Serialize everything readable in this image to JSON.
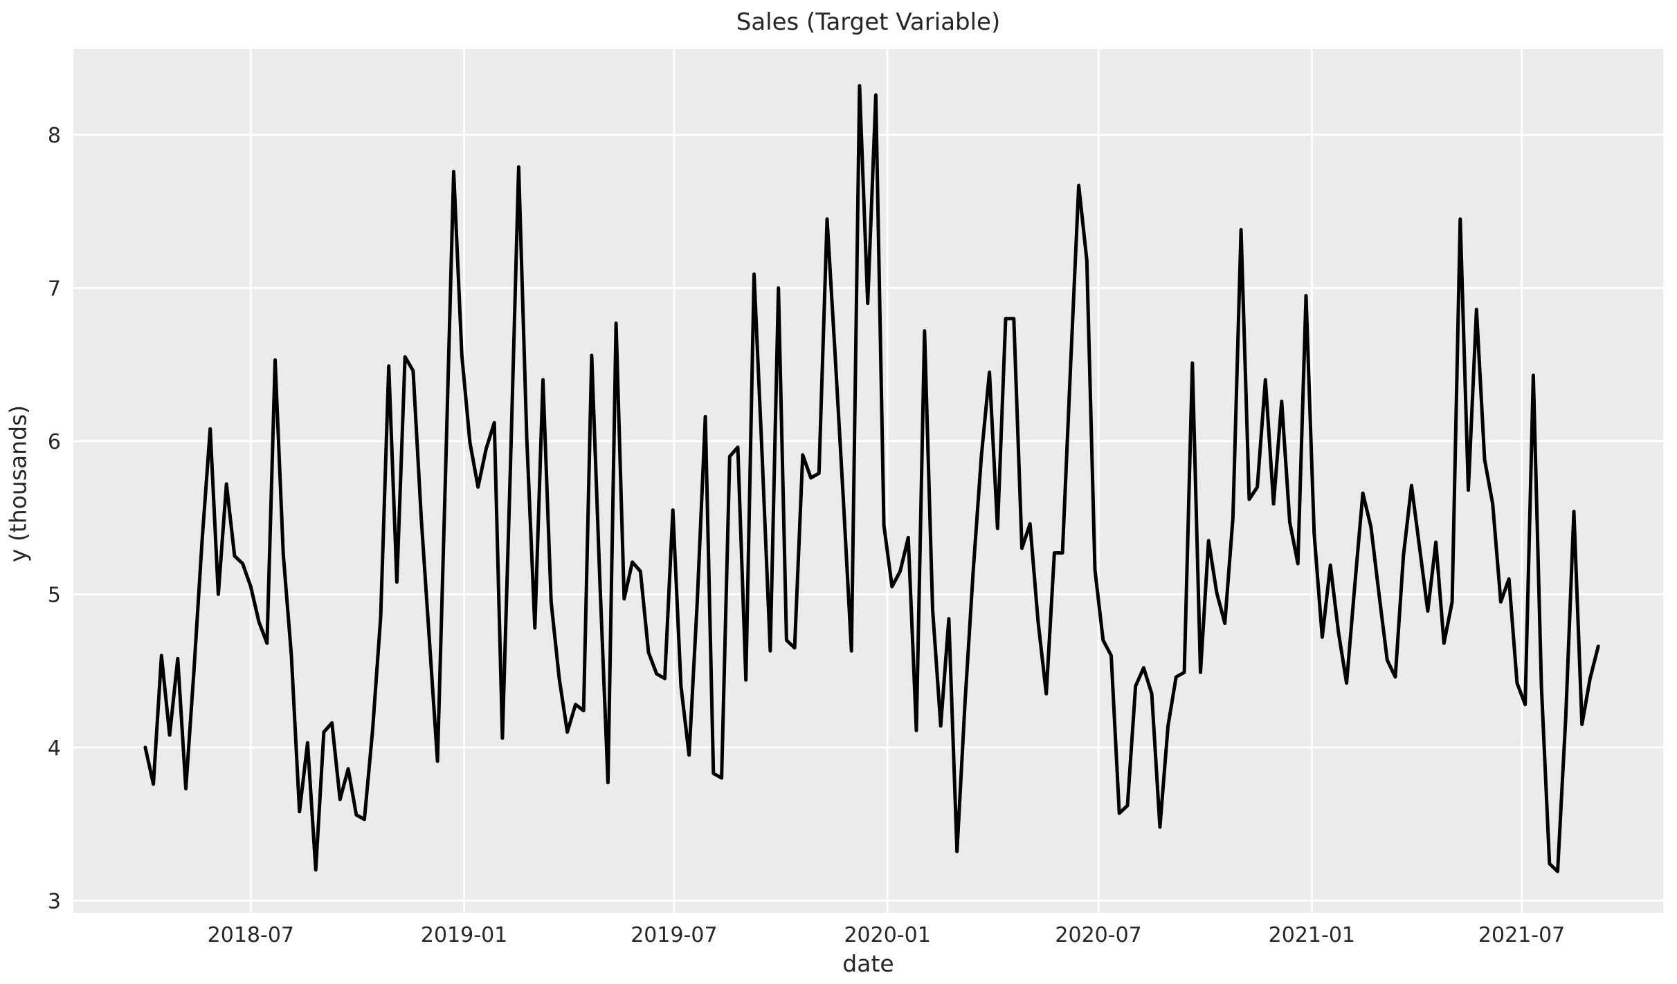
{
  "figure": {
    "title": "Sales (Target Variable)",
    "background_color": "#ffffff"
  },
  "chart_data": {
    "type": "line",
    "title": "Sales (Target Variable)",
    "xlabel": "date",
    "ylabel": "y (thousands)",
    "legend_position": "none",
    "grid": true,
    "line_color": "#000000",
    "line_width": 5,
    "plot_bg_color": "#ebebeb",
    "grid_color": "#ffffff",
    "text_color": "#262626",
    "ylim": [
      2.92,
      8.56
    ],
    "xlim_dates": [
      "2018-01-29",
      "2021-10-31"
    ],
    "y_ticks": [
      3,
      4,
      5,
      6,
      7,
      8
    ],
    "x_ticks": [
      {
        "date": "2018-07-01",
        "label": "2018-07"
      },
      {
        "date": "2019-01-01",
        "label": "2019-01"
      },
      {
        "date": "2019-07-01",
        "label": "2019-07"
      },
      {
        "date": "2020-01-01",
        "label": "2020-01"
      },
      {
        "date": "2020-07-01",
        "label": "2020-07"
      },
      {
        "date": "2021-01-01",
        "label": "2021-01"
      },
      {
        "date": "2021-07-01",
        "label": "2021-07"
      }
    ],
    "series": [
      {
        "name": "y",
        "x_start_date": "2018-04-01",
        "x_end_date": "2021-09-05",
        "x_freq_days": 7,
        "values": [
          4.0,
          3.76,
          4.6,
          4.08,
          4.58,
          3.73,
          4.5,
          5.35,
          6.08,
          5.0,
          5.72,
          5.25,
          5.2,
          5.05,
          4.82,
          4.68,
          6.53,
          5.26,
          4.6,
          3.58,
          4.03,
          3.2,
          4.1,
          4.16,
          3.66,
          3.86,
          3.56,
          3.53,
          4.11,
          4.85,
          6.49,
          5.08,
          6.55,
          6.46,
          5.5,
          4.7,
          3.91,
          5.8,
          7.76,
          6.56,
          5.99,
          5.7,
          5.95,
          6.12,
          4.06,
          5.85,
          7.79,
          6.02,
          4.78,
          6.4,
          4.95,
          4.45,
          4.1,
          4.28,
          4.24,
          6.56,
          5.1,
          3.77,
          6.77,
          4.97,
          5.21,
          5.15,
          4.62,
          4.48,
          4.45,
          5.55,
          4.4,
          3.95,
          4.95,
          6.16,
          3.83,
          3.8,
          5.9,
          5.96,
          4.44,
          7.09,
          5.9,
          4.63,
          7.0,
          4.7,
          4.65,
          5.91,
          5.76,
          5.79,
          7.45,
          6.55,
          5.62,
          4.63,
          8.32,
          6.9,
          8.26,
          5.45,
          5.05,
          5.15,
          5.37,
          4.11,
          6.72,
          4.9,
          4.14,
          4.84,
          3.32,
          4.3,
          5.15,
          5.9,
          6.45,
          5.43,
          6.8,
          6.8,
          5.3,
          5.46,
          4.82,
          4.35,
          5.27,
          5.27,
          6.5,
          7.67,
          7.18,
          5.16,
          4.7,
          4.6,
          3.57,
          3.62,
          4.4,
          4.52,
          4.35,
          3.48,
          4.14,
          4.46,
          4.49,
          6.51,
          4.49,
          5.35,
          5.01,
          4.81,
          5.5,
          7.38,
          5.62,
          5.7,
          6.4,
          5.59,
          6.26,
          5.47,
          5.2,
          6.95,
          5.4,
          4.72,
          5.19,
          4.75,
          4.42,
          5.05,
          5.66,
          5.44,
          5.0,
          4.57,
          4.46,
          5.25,
          5.71,
          5.3,
          4.89,
          5.34,
          4.68,
          4.95,
          7.45,
          5.68,
          6.86,
          5.88,
          5.59,
          4.95,
          5.1,
          4.42,
          4.28,
          6.43,
          4.4,
          3.24,
          3.19,
          4.2,
          5.54,
          4.15,
          4.45,
          4.66
        ]
      }
    ]
  }
}
